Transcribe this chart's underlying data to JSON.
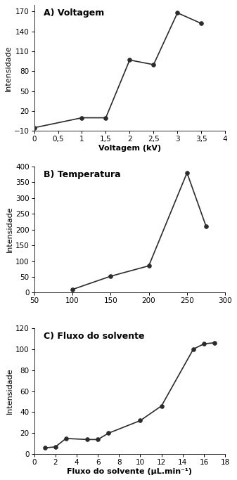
{
  "panel_A": {
    "title": "A) Voltagem",
    "xlabel": "Voltagem (kV)",
    "ylabel": "Intensidade",
    "x": [
      0,
      1.0,
      1.5,
      2.0,
      2.5,
      3.0,
      3.5
    ],
    "y": [
      -5,
      10,
      10,
      97,
      90,
      168,
      152
    ],
    "xlim": [
      0,
      4
    ],
    "ylim": [
      -10,
      180
    ],
    "yticks": [
      -10,
      20,
      50,
      80,
      110,
      140,
      170
    ],
    "xticks": [
      0,
      0.5,
      1.0,
      1.5,
      2.0,
      2.5,
      3.0,
      3.5,
      4.0
    ]
  },
  "panel_B": {
    "title": "B) Temperatura",
    "xlabel": "",
    "ylabel": "Intensidade",
    "x": [
      100,
      150,
      200,
      250,
      275
    ],
    "y": [
      10,
      52,
      85,
      380,
      210
    ],
    "xlim": [
      50,
      300
    ],
    "ylim": [
      0,
      400
    ],
    "yticks": [
      0,
      50,
      100,
      150,
      200,
      250,
      300,
      350,
      400
    ],
    "xticks": [
      50,
      100,
      150,
      200,
      250,
      300
    ]
  },
  "panel_C": {
    "title": "C) Fluxo do solvente",
    "xlabel": "Fluxo do solvente (μL.min⁻¹)",
    "ylabel": "Intensidade",
    "x": [
      1,
      2,
      3,
      5,
      6,
      7,
      10,
      12,
      15,
      16,
      17
    ],
    "y": [
      6,
      7,
      15,
      14,
      14,
      20,
      32,
      46,
      100,
      105,
      106
    ],
    "xlim": [
      0,
      18
    ],
    "ylim": [
      0,
      120
    ],
    "yticks": [
      0,
      20,
      40,
      60,
      80,
      100,
      120
    ],
    "xticks": [
      0,
      2,
      4,
      6,
      8,
      10,
      12,
      14,
      16,
      18
    ]
  },
  "line_color": "#2b2b2b",
  "marker": "o",
  "markersize": 4,
  "linewidth": 1.2,
  "markerfacecolor": "#2b2b2b",
  "markeredgecolor": "#2b2b2b",
  "title_fontsize": 9,
  "label_fontsize": 8,
  "tick_fontsize": 7.5,
  "background_color": "#ffffff"
}
